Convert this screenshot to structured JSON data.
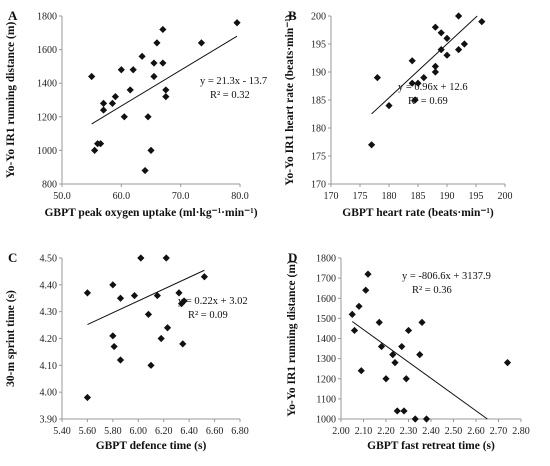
{
  "chart_data": [
    {
      "type": "scatter",
      "panel": "A",
      "xlabel": "GBPT peak oxygen uptake (ml·kg⁻¹·min⁻¹)",
      "ylabel": "Yo-Yo IR1 running distance (m)",
      "xlim": [
        50.0,
        80.0
      ],
      "ylim": [
        800,
        1800
      ],
      "xticks": [
        "50.0",
        "60.0",
        "70.0",
        "80.0"
      ],
      "yticks": [
        "800",
        "1000",
        "1200",
        "1400",
        "1600",
        "1800"
      ],
      "x": [
        55.0,
        55.5,
        56.0,
        56.5,
        57.0,
        57.0,
        58.5,
        59.0,
        60.0,
        60.5,
        61.5,
        62.0,
        63.5,
        64.0,
        64.5,
        65.0,
        65.5,
        65.5,
        66.0,
        67.0,
        67.0,
        67.5,
        67.5,
        73.5,
        79.5
      ],
      "y": [
        1440,
        1000,
        1040,
        1040,
        1280,
        1240,
        1280,
        1320,
        1480,
        1200,
        1360,
        1480,
        1560,
        880,
        1200,
        1000,
        1440,
        1520,
        1640,
        1720,
        1520,
        1360,
        1320,
        1640,
        1760
      ],
      "trendline": {
        "slope": 21.3,
        "intercept": -13.7
      },
      "equation": "y = 21.3x - 13.7",
      "r2": "R² = 0.32"
    },
    {
      "type": "scatter",
      "panel": "B",
      "xlabel": "GBPT heart rate (beats·min⁻¹)",
      "ylabel": "Yo-Yo IR1 heart rate (beats·min⁻¹)",
      "xlim": [
        170,
        200
      ],
      "ylim": [
        170,
        200
      ],
      "xticks": [
        "170",
        "175",
        "180",
        "185",
        "190",
        "195",
        "200"
      ],
      "yticks": [
        "170",
        "175",
        "180",
        "185",
        "190",
        "195",
        "200"
      ],
      "x": [
        177,
        178,
        180,
        184,
        184,
        184.5,
        185,
        186,
        188,
        188,
        188,
        189,
        189,
        190,
        190,
        192,
        192,
        193,
        196
      ],
      "y": [
        177,
        189,
        184,
        192,
        188,
        185,
        188,
        189,
        198,
        191,
        190,
        194,
        197,
        196,
        193,
        200,
        194,
        195,
        199
      ],
      "trendline": {
        "slope": 0.96,
        "intercept": 12.6
      },
      "equation": "y = 0.96x + 12.6",
      "r2": "R² = 0.69"
    },
    {
      "type": "scatter",
      "panel": "C",
      "xlabel": "GBPT defence time (s)",
      "ylabel": "30-m sprint time (s)",
      "xlim": [
        5.4,
        6.8
      ],
      "ylim": [
        3.9,
        4.5
      ],
      "xticks": [
        "5.40",
        "5.60",
        "5.80",
        "6.00",
        "6.20",
        "6.40",
        "6.60",
        "6.80"
      ],
      "yticks": [
        "3.90",
        "4.00",
        "4.10",
        "4.20",
        "4.30",
        "4.40",
        "4.50"
      ],
      "x": [
        5.6,
        5.6,
        5.8,
        5.8,
        5.81,
        5.86,
        5.86,
        5.97,
        6.02,
        6.08,
        6.1,
        6.15,
        6.18,
        6.22,
        6.23,
        6.32,
        6.34,
        6.35,
        6.36,
        6.52
      ],
      "y": [
        4.37,
        3.98,
        4.4,
        4.21,
        4.17,
        4.35,
        4.12,
        4.36,
        4.5,
        4.29,
        4.1,
        4.36,
        4.2,
        4.5,
        4.24,
        4.37,
        4.33,
        4.18,
        4.34,
        4.43
      ],
      "trendline": {
        "slope": 0.22,
        "intercept": 3.02
      },
      "equation": "y = 0.22x + 3.02",
      "r2": "R² = 0.09"
    },
    {
      "type": "scatter",
      "panel": "D",
      "xlabel": "GBPT fast retreat time (s)",
      "ylabel": "Yo-Yo IR1 running distance (m)",
      "xlim": [
        2.0,
        2.8
      ],
      "ylim": [
        1000,
        1800
      ],
      "xticks": [
        "2.00",
        "2.10",
        "2.20",
        "2.30",
        "2.40",
        "2.50",
        "2.60",
        "2.70",
        "2.80"
      ],
      "yticks": [
        "1000",
        "1100",
        "1200",
        "1300",
        "1400",
        "1500",
        "1600",
        "1700",
        "1800"
      ],
      "x": [
        2.05,
        2.06,
        2.08,
        2.09,
        2.11,
        2.12,
        2.17,
        2.18,
        2.2,
        2.23,
        2.24,
        2.25,
        2.27,
        2.28,
        2.29,
        2.3,
        2.33,
        2.35,
        2.36,
        2.38,
        2.74
      ],
      "y": [
        1520,
        1440,
        1560,
        1240,
        1640,
        1720,
        1480,
        1360,
        1200,
        1320,
        1280,
        1040,
        1360,
        1040,
        1200,
        1440,
        1000,
        1320,
        1480,
        1000,
        1280
      ],
      "trendline": {
        "slope": -806.6,
        "intercept": 3137.9
      },
      "equation": "y = -806.6x + 3137.9",
      "r2": "R² = 0.36"
    }
  ]
}
